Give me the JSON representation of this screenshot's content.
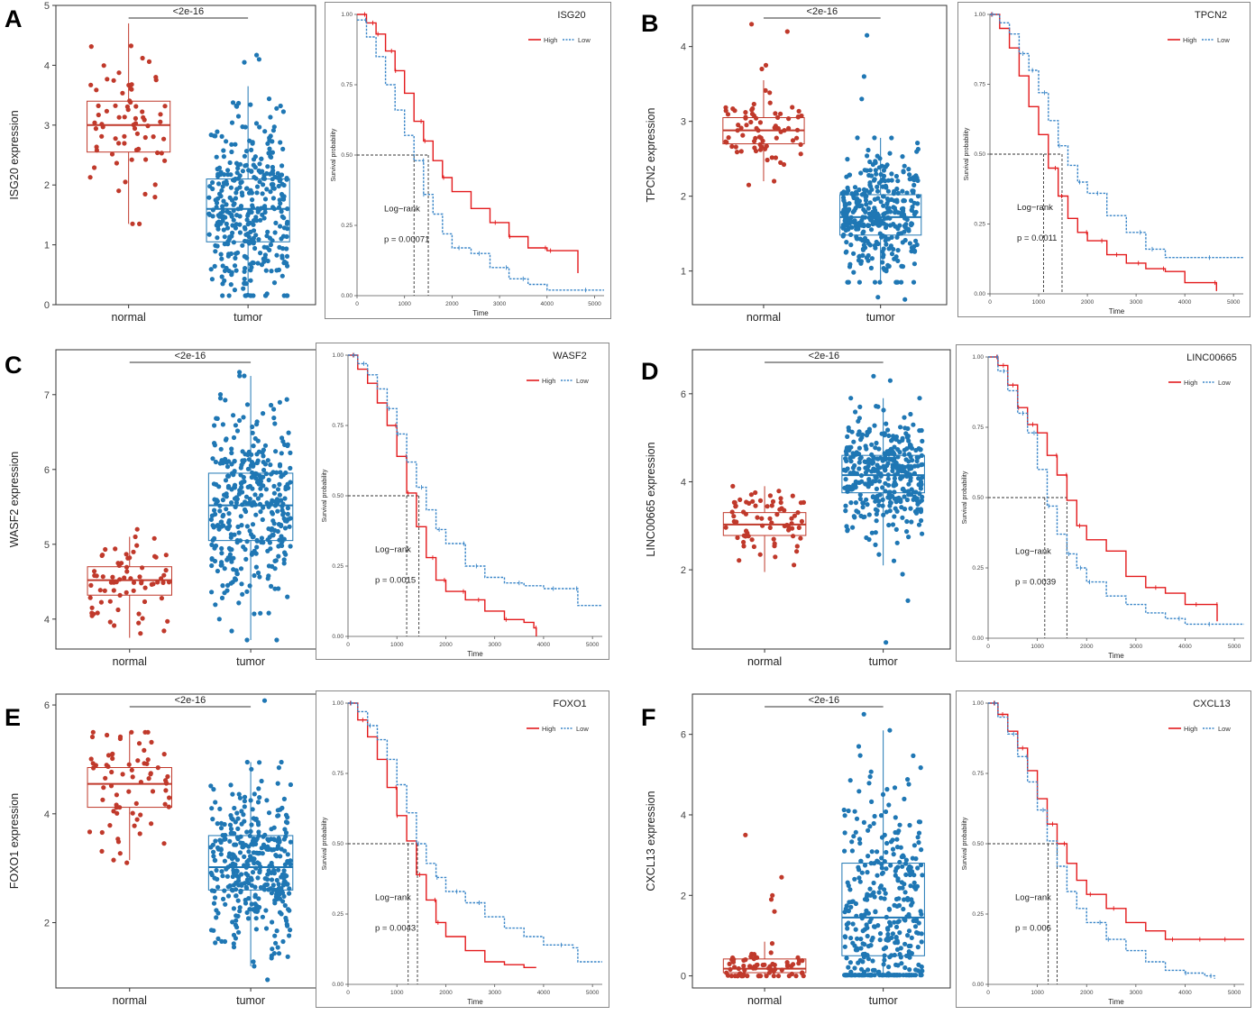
{
  "figure": {
    "panel_labels": [
      "A",
      "B",
      "C",
      "D",
      "E",
      "F"
    ],
    "colors": {
      "normal": "#c0392b",
      "tumor": "#1f77b4",
      "high": "#e31a1c",
      "low": "#3a86c8"
    }
  },
  "chart_data": [
    {
      "panel": "A",
      "type": "box",
      "title": "",
      "ylabel": "ISG20 expression",
      "categories": [
        "normal",
        "tumor"
      ],
      "significance": "<2e-16",
      "ylim": [
        0,
        5
      ],
      "yticks": [
        0,
        1,
        2,
        3,
        4,
        5
      ],
      "boxes": [
        {
          "group": "normal",
          "min": 1.35,
          "q1": 2.55,
          "median": 3.0,
          "q3": 3.4,
          "max": 4.7,
          "n": 72
        },
        {
          "group": "tumor",
          "min": 0.15,
          "q1": 1.05,
          "median": 1.6,
          "q3": 2.1,
          "max": 3.65,
          "n": 374,
          "outliers": [
            4.1,
            4.17,
            4.05
          ]
        }
      ]
    },
    {
      "panel": "A",
      "type": "line",
      "subtype": "kaplan-meier",
      "title": "ISG20",
      "xlabel": "Time",
      "ylabel": "Survival probability",
      "xlim": [
        0,
        5200
      ],
      "ylim": [
        0,
        1
      ],
      "xticks": [
        0,
        1000,
        2000,
        3000,
        4000,
        5000
      ],
      "yticks": [
        0,
        0.25,
        0.5,
        0.75,
        1
      ],
      "yticklabels": [
        "0.00",
        "0.25",
        "0.50",
        "0.75",
        "1.00"
      ],
      "legend": [
        "High",
        "Low"
      ],
      "annotation": [
        "Log−rank",
        "p = 0.00071"
      ],
      "medians": {
        "High": 1500,
        "Low": 1200
      },
      "series": [
        {
          "name": "High",
          "x": [
            0,
            200,
            400,
            600,
            800,
            1000,
            1200,
            1400,
            1600,
            1800,
            2000,
            2400,
            2800,
            3200,
            3600,
            4000,
            4600,
            4650
          ],
          "y": [
            1.0,
            0.97,
            0.93,
            0.87,
            0.8,
            0.72,
            0.62,
            0.55,
            0.48,
            0.42,
            0.37,
            0.31,
            0.26,
            0.21,
            0.17,
            0.16,
            0.16,
            0.08
          ]
        },
        {
          "name": "Low",
          "x": [
            0,
            200,
            400,
            600,
            800,
            1000,
            1200,
            1400,
            1600,
            1800,
            2000,
            2400,
            2800,
            3200,
            3600,
            4000,
            4600,
            5200
          ],
          "y": [
            0.98,
            0.92,
            0.85,
            0.75,
            0.66,
            0.57,
            0.48,
            0.36,
            0.29,
            0.22,
            0.17,
            0.15,
            0.1,
            0.06,
            0.04,
            0.02,
            0.02,
            0.02
          ]
        }
      ]
    },
    {
      "panel": "B",
      "type": "box",
      "title": "",
      "ylabel": "TPCN2 expression",
      "categories": [
        "normal",
        "tumor"
      ],
      "significance": "<2e-16",
      "ylim": [
        0.55,
        4.55
      ],
      "yticks": [
        1,
        2,
        3,
        4
      ],
      "boxes": [
        {
          "group": "normal",
          "min": 2.2,
          "q1": 2.7,
          "median": 2.88,
          "q3": 3.05,
          "max": 3.55,
          "n": 72,
          "outliers": [
            4.3,
            4.2,
            3.75,
            3.7,
            2.15
          ]
        },
        {
          "group": "tumor",
          "min": 0.85,
          "q1": 1.48,
          "median": 1.72,
          "q3": 2.02,
          "max": 2.78,
          "n": 374,
          "outliers": [
            0.62,
            0.65,
            3.6,
            4.15,
            3.3
          ]
        }
      ]
    },
    {
      "panel": "B",
      "type": "line",
      "subtype": "kaplan-meier",
      "title": "TPCN2",
      "xlabel": "Time",
      "ylabel": "Survival probability",
      "xlim": [
        0,
        5200
      ],
      "ylim": [
        0,
        1
      ],
      "xticks": [
        0,
        1000,
        2000,
        3000,
        4000,
        5000
      ],
      "yticks": [
        0,
        0.25,
        0.5,
        0.75,
        1
      ],
      "yticklabels": [
        "0.00",
        "0.25",
        "0.50",
        "0.75",
        "1.00"
      ],
      "legend": [
        "High",
        "Low"
      ],
      "annotation": [
        "Log−rank",
        "p = 0.0011"
      ],
      "medians": {
        "High": 1100,
        "Low": 1480
      },
      "series": [
        {
          "name": "High",
          "x": [
            0,
            200,
            400,
            600,
            800,
            1000,
            1200,
            1400,
            1600,
            1800,
            2000,
            2400,
            2800,
            3200,
            3600,
            4000,
            4600,
            4650
          ],
          "y": [
            1.0,
            0.95,
            0.88,
            0.78,
            0.67,
            0.57,
            0.45,
            0.35,
            0.27,
            0.22,
            0.19,
            0.14,
            0.11,
            0.09,
            0.08,
            0.04,
            0.04,
            0.01
          ]
        },
        {
          "name": "Low",
          "x": [
            0,
            200,
            400,
            600,
            800,
            1000,
            1200,
            1400,
            1600,
            1800,
            2000,
            2400,
            2800,
            3200,
            3600,
            4000,
            4600,
            5200
          ],
          "y": [
            1.0,
            0.97,
            0.93,
            0.86,
            0.8,
            0.72,
            0.62,
            0.53,
            0.46,
            0.4,
            0.36,
            0.28,
            0.22,
            0.16,
            0.13,
            0.13,
            0.13,
            0.13
          ]
        }
      ]
    },
    {
      "panel": "C",
      "type": "box",
      "title": "",
      "ylabel": "WASF2 expression",
      "categories": [
        "normal",
        "tumor"
      ],
      "significance": "<2e-16",
      "ylim": [
        3.6,
        7.6
      ],
      "yticks": [
        4,
        5,
        6,
        7
      ],
      "boxes": [
        {
          "group": "normal",
          "min": 3.75,
          "q1": 4.32,
          "median": 4.52,
          "q3": 4.7,
          "max": 5.1,
          "n": 72,
          "outliers": [
            5.2
          ]
        },
        {
          "group": "tumor",
          "min": 3.72,
          "q1": 5.05,
          "median": 5.52,
          "q3": 5.95,
          "max": 7.25,
          "n": 374,
          "outliers": [
            7.3
          ]
        }
      ]
    },
    {
      "panel": "C",
      "type": "line",
      "subtype": "kaplan-meier",
      "title": "WASF2",
      "xlabel": "Time",
      "ylabel": "Survival probability",
      "xlim": [
        0,
        5200
      ],
      "ylim": [
        0,
        1
      ],
      "xticks": [
        0,
        1000,
        2000,
        3000,
        4000,
        5000
      ],
      "yticks": [
        0,
        0.25,
        0.5,
        0.75,
        1
      ],
      "yticklabels": [
        "0.00",
        "0.25",
        "0.50",
        "0.75",
        "1.00"
      ],
      "legend": [
        "High",
        "Low"
      ],
      "annotation": [
        "Log−rank",
        "p = 0.0015"
      ],
      "medians": {
        "High": 1200,
        "Low": 1450
      },
      "series": [
        {
          "name": "High",
          "x": [
            0,
            200,
            400,
            600,
            800,
            1000,
            1200,
            1400,
            1600,
            1800,
            2000,
            2400,
            2800,
            3200,
            3600,
            3800,
            3850
          ],
          "y": [
            1.0,
            0.95,
            0.9,
            0.83,
            0.75,
            0.64,
            0.51,
            0.39,
            0.28,
            0.2,
            0.16,
            0.13,
            0.09,
            0.06,
            0.05,
            0.03,
            0.0
          ]
        },
        {
          "name": "Low",
          "x": [
            0,
            200,
            400,
            600,
            800,
            1000,
            1200,
            1400,
            1600,
            1800,
            2000,
            2400,
            2800,
            3200,
            3600,
            4000,
            4600,
            4700,
            5200
          ],
          "y": [
            1.0,
            0.97,
            0.93,
            0.88,
            0.81,
            0.72,
            0.62,
            0.53,
            0.45,
            0.38,
            0.33,
            0.25,
            0.21,
            0.19,
            0.18,
            0.17,
            0.17,
            0.11,
            0.11
          ]
        }
      ]
    },
    {
      "panel": "D",
      "type": "box",
      "title": "",
      "ylabel": "LINC00665 expression",
      "categories": [
        "normal",
        "tumor"
      ],
      "significance": "<2e-16",
      "ylim": [
        0.2,
        7.0
      ],
      "yticks": [
        2,
        4,
        6
      ],
      "boxes": [
        {
          "group": "normal",
          "min": 1.95,
          "q1": 2.78,
          "median": 3.03,
          "q3": 3.3,
          "max": 3.9,
          "n": 72
        },
        {
          "group": "tumor",
          "min": 2.1,
          "q1": 3.75,
          "median": 4.15,
          "q3": 4.6,
          "max": 5.9,
          "n": 374,
          "outliers": [
            0.35,
            1.3,
            6.3,
            6.4,
            1.9
          ]
        }
      ]
    },
    {
      "panel": "D",
      "type": "line",
      "subtype": "kaplan-meier",
      "title": "LINC00665",
      "xlabel": "Time",
      "ylabel": "Survival probability",
      "xlim": [
        0,
        5200
      ],
      "ylim": [
        0,
        1
      ],
      "xticks": [
        0,
        1000,
        2000,
        3000,
        4000,
        5000
      ],
      "yticks": [
        0,
        0.25,
        0.5,
        0.75,
        1
      ],
      "yticklabels": [
        "0.00",
        "0.25",
        "0.50",
        "0.75",
        "1.00"
      ],
      "legend": [
        "High",
        "Low"
      ],
      "annotation": [
        "Log−rank",
        "p = 0.0039"
      ],
      "medians": {
        "High": 1600,
        "Low": 1150
      },
      "series": [
        {
          "name": "High",
          "x": [
            0,
            200,
            400,
            600,
            800,
            1000,
            1200,
            1400,
            1600,
            1800,
            2000,
            2400,
            2800,
            3200,
            3600,
            4000,
            4600,
            4650
          ],
          "y": [
            1.0,
            0.97,
            0.9,
            0.82,
            0.76,
            0.73,
            0.65,
            0.58,
            0.49,
            0.4,
            0.35,
            0.31,
            0.22,
            0.18,
            0.16,
            0.12,
            0.12,
            0.06
          ]
        },
        {
          "name": "Low",
          "x": [
            0,
            200,
            400,
            600,
            800,
            1000,
            1200,
            1400,
            1600,
            1800,
            2000,
            2400,
            2800,
            3200,
            3600,
            4000,
            4600,
            5200
          ],
          "y": [
            1.0,
            0.95,
            0.88,
            0.8,
            0.73,
            0.6,
            0.47,
            0.37,
            0.3,
            0.25,
            0.2,
            0.15,
            0.12,
            0.09,
            0.07,
            0.05,
            0.05,
            0.05
          ]
        }
      ]
    },
    {
      "panel": "E",
      "type": "box",
      "title": "",
      "ylabel": "FOXO1 expression",
      "categories": [
        "normal",
        "tumor"
      ],
      "significance": "<2e-16",
      "ylim": [
        0.8,
        6.2
      ],
      "yticks": [
        2,
        4,
        6
      ],
      "boxes": [
        {
          "group": "normal",
          "min": 3.15,
          "q1": 4.12,
          "median": 4.55,
          "q3": 4.85,
          "max": 5.5,
          "n": 72,
          "outliers": [
            3.1
          ]
        },
        {
          "group": "tumor",
          "min": 1.2,
          "q1": 2.6,
          "median": 3.02,
          "q3": 3.6,
          "max": 4.95,
          "n": 374,
          "outliers": [
            0.95,
            6.08
          ]
        }
      ]
    },
    {
      "panel": "E",
      "type": "line",
      "subtype": "kaplan-meier",
      "title": "FOXO1",
      "xlabel": "Time",
      "ylabel": "Survival probability",
      "xlim": [
        0,
        5200
      ],
      "ylim": [
        0,
        1
      ],
      "xticks": [
        0,
        1000,
        2000,
        3000,
        4000,
        5000
      ],
      "yticks": [
        0,
        0.25,
        0.5,
        0.75,
        1
      ],
      "yticklabels": [
        "0.00",
        "0.25",
        "0.50",
        "0.75",
        "1.00"
      ],
      "legend": [
        "High",
        "Low"
      ],
      "annotation": [
        "Log−rank",
        "p = 0.0043"
      ],
      "medians": {
        "High": 1230,
        "Low": 1420
      },
      "series": [
        {
          "name": "High",
          "x": [
            0,
            200,
            400,
            600,
            800,
            1000,
            1200,
            1400,
            1600,
            1800,
            2000,
            2400,
            2800,
            3200,
            3600,
            3850
          ],
          "y": [
            1.0,
            0.94,
            0.88,
            0.8,
            0.7,
            0.6,
            0.51,
            0.39,
            0.3,
            0.22,
            0.17,
            0.12,
            0.08,
            0.07,
            0.06,
            0.06
          ]
        },
        {
          "name": "Low",
          "x": [
            0,
            200,
            400,
            600,
            800,
            1000,
            1200,
            1400,
            1600,
            1800,
            2000,
            2400,
            2800,
            3200,
            3600,
            4000,
            4600,
            4700,
            5200
          ],
          "y": [
            1.0,
            0.97,
            0.92,
            0.87,
            0.8,
            0.71,
            0.61,
            0.5,
            0.43,
            0.38,
            0.33,
            0.29,
            0.24,
            0.2,
            0.17,
            0.14,
            0.13,
            0.08,
            0.08
          ]
        }
      ]
    },
    {
      "panel": "F",
      "type": "box",
      "title": "",
      "ylabel": "CXCL13 expression",
      "categories": [
        "normal",
        "tumor"
      ],
      "significance": "<2e-16",
      "ylim": [
        -0.3,
        7.0
      ],
      "yticks": [
        0,
        2,
        4,
        6
      ],
      "boxes": [
        {
          "group": "normal",
          "min": 0.0,
          "q1": 0.08,
          "median": 0.18,
          "q3": 0.42,
          "max": 0.85,
          "n": 72,
          "outliers": [
            2.45,
            3.5,
            2.0,
            1.9,
            1.6
          ]
        },
        {
          "group": "tumor",
          "min": 0.02,
          "q1": 0.5,
          "median": 1.45,
          "q3": 2.8,
          "max": 6.1,
          "n": 374,
          "outliers": [
            6.5
          ]
        }
      ]
    },
    {
      "panel": "F",
      "type": "line",
      "subtype": "kaplan-meier",
      "title": "CXCL13",
      "xlabel": "Time",
      "ylabel": "Survival probability",
      "xlim": [
        0,
        5200
      ],
      "ylim": [
        0,
        1
      ],
      "xticks": [
        0,
        1000,
        2000,
        3000,
        4000,
        5000
      ],
      "yticks": [
        0,
        0.25,
        0.5,
        0.75,
        1
      ],
      "yticklabels": [
        "0.00",
        "0.25",
        "0.50",
        "0.75",
        "1.00"
      ],
      "legend": [
        "High",
        "Low"
      ],
      "annotation": [
        "Log−rank",
        "p = 0.006"
      ],
      "medians": {
        "High": 1400,
        "Low": 1220
      },
      "series": [
        {
          "name": "High",
          "x": [
            0,
            200,
            400,
            600,
            800,
            1000,
            1200,
            1400,
            1600,
            1800,
            2000,
            2400,
            2800,
            3200,
            3600,
            4000,
            4600,
            5200
          ],
          "y": [
            1.0,
            0.96,
            0.9,
            0.84,
            0.76,
            0.66,
            0.57,
            0.5,
            0.43,
            0.37,
            0.32,
            0.27,
            0.22,
            0.19,
            0.16,
            0.16,
            0.16,
            0.16
          ]
        },
        {
          "name": "Low",
          "x": [
            0,
            200,
            400,
            600,
            800,
            1000,
            1200,
            1400,
            1600,
            1800,
            2000,
            2400,
            2800,
            3200,
            3600,
            4000,
            4400,
            4600
          ],
          "y": [
            1.0,
            0.95,
            0.89,
            0.81,
            0.72,
            0.62,
            0.51,
            0.42,
            0.33,
            0.27,
            0.22,
            0.16,
            0.12,
            0.08,
            0.05,
            0.04,
            0.03,
            0.02
          ]
        }
      ]
    }
  ]
}
